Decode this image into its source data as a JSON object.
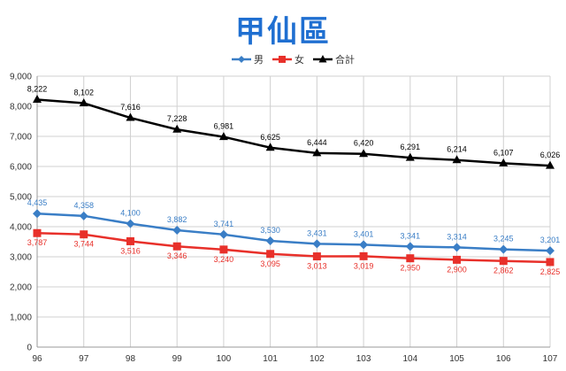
{
  "chart_data": {
    "type": "line",
    "title": "甲仙區",
    "categories": [
      "96",
      "97",
      "98",
      "99",
      "100",
      "101",
      "102",
      "103",
      "104",
      "105",
      "106",
      "107"
    ],
    "ylim": [
      0,
      9000
    ],
    "yticks": [
      "0",
      "1,000",
      "2,000",
      "3,000",
      "4,000",
      "5,000",
      "6,000",
      "7,000",
      "8,000",
      "9,000"
    ],
    "grid": true,
    "legend_position": "top-center",
    "series": [
      {
        "name": "男",
        "color": "#3a7ec6",
        "marker": "diamond",
        "values": [
          4435,
          4358,
          4100,
          3882,
          3741,
          3530,
          3431,
          3401,
          3341,
          3314,
          3245,
          3201
        ],
        "labels": [
          "4,435",
          "4,358",
          "4,100",
          "3,882",
          "3,741",
          "3,530",
          "3,431",
          "3,401",
          "3,341",
          "3,314",
          "3,245",
          "3,201"
        ]
      },
      {
        "name": "女",
        "color": "#e8302a",
        "marker": "square",
        "values": [
          3787,
          3744,
          3516,
          3346,
          3240,
          3095,
          3013,
          3019,
          2950,
          2900,
          2862,
          2825
        ],
        "labels": [
          "3,787",
          "3,744",
          "3,516",
          "3,346",
          "3,240",
          "3,095",
          "3,013",
          "3,019",
          "2,950",
          "2,900",
          "2,862",
          "2,825"
        ]
      },
      {
        "name": "合計",
        "color": "#000000",
        "marker": "triangle",
        "values": [
          8222,
          8102,
          7616,
          7228,
          6981,
          6625,
          6444,
          6420,
          6291,
          6214,
          6107,
          6026
        ],
        "labels": [
          "8,222",
          "8,102",
          "7,616",
          "7,228",
          "6,981",
          "6,625",
          "6,444",
          "6,420",
          "6,291",
          "6,214",
          "6,107",
          "6,026"
        ]
      }
    ]
  }
}
